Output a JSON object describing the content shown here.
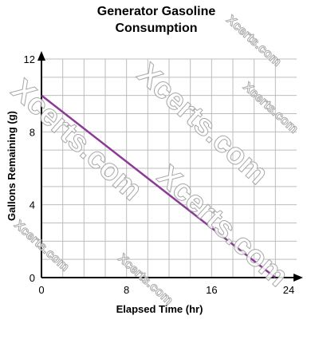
{
  "chart_data": {
    "type": "line",
    "title_lines": [
      "Generator Gasoline",
      "Consumption"
    ],
    "xlabel": "Elapsed Time (hr)",
    "ylabel": "Gallons Remaining (g)",
    "xlim": [
      0,
      24
    ],
    "ylim": [
      0,
      12
    ],
    "x_ticks": [
      0,
      8,
      16,
      24
    ],
    "y_ticks": [
      0,
      4,
      8,
      12
    ],
    "x_tick_labels": [
      "0",
      "8",
      "16",
      "24"
    ],
    "y_tick_labels": [
      "0",
      "4",
      "8",
      "12"
    ],
    "grid": true,
    "grid_step_x": 2,
    "grid_step_y": 1,
    "series": [
      {
        "x": [
          0,
          22
        ],
        "y": [
          10,
          0
        ],
        "color": "#8b3a96"
      }
    ]
  },
  "watermark": {
    "text_large": "Xcerts.com",
    "text_small": "Xcerts.com",
    "color": "#9a9a9a"
  },
  "colors": {
    "grid": "#bdbdbd",
    "axis": "#000000",
    "line": "#8b3a96"
  }
}
